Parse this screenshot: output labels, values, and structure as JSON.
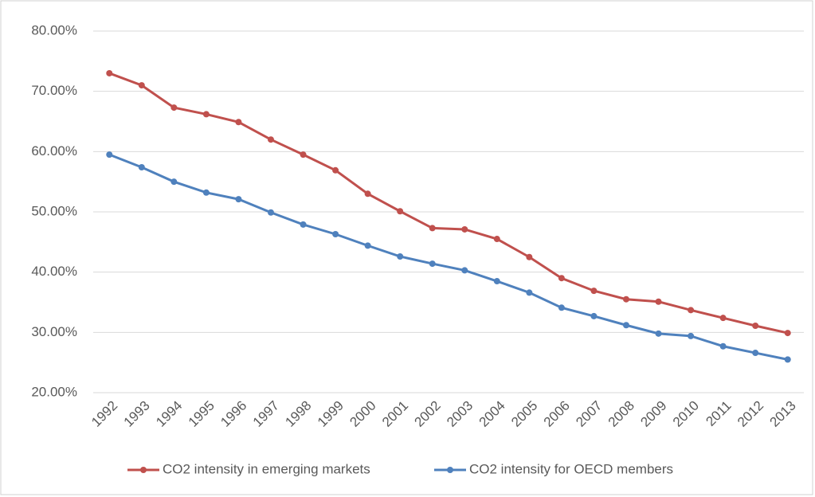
{
  "chart_data": {
    "type": "line",
    "categories": [
      "1992",
      "1993",
      "1994",
      "1995",
      "1996",
      "1997",
      "1998",
      "1999",
      "2000",
      "2001",
      "2002",
      "2003",
      "2004",
      "2005",
      "2006",
      "2007",
      "2008",
      "2009",
      "2010",
      "2011",
      "2012",
      "2013"
    ],
    "series": [
      {
        "name": "CO2 intensity in emerging markets",
        "color": "#c0504d",
        "values": [
          73,
          71,
          67.3,
          66.2,
          64.9,
          62,
          59.5,
          56.9,
          53,
          50.1,
          47.3,
          47.1,
          45.5,
          42.5,
          39,
          36.9,
          35.5,
          35.1,
          33.7,
          32.4,
          31.1,
          29.9
        ]
      },
      {
        "name": "CO2 intensity for OECD members",
        "color": "#4f81bd",
        "values": [
          59.5,
          57.4,
          55,
          53.2,
          52.1,
          49.9,
          47.9,
          46.3,
          44.4,
          42.6,
          41.4,
          40.3,
          38.5,
          36.6,
          34.1,
          32.7,
          31.2,
          29.8,
          29.4,
          27.7,
          26.6,
          25.5
        ]
      }
    ],
    "ylim": [
      20,
      80
    ],
    "yticks": [
      {
        "value": 20,
        "label": "20.00%"
      },
      {
        "value": 30,
        "label": "30.00%"
      },
      {
        "value": 40,
        "label": "40.00%"
      },
      {
        "value": 50,
        "label": "50.00%"
      },
      {
        "value": 60,
        "label": "60.00%"
      },
      {
        "value": 70,
        "label": "70.00%"
      },
      {
        "value": 80,
        "label": "80.00%"
      }
    ],
    "grid": true,
    "legend": "bottom"
  }
}
